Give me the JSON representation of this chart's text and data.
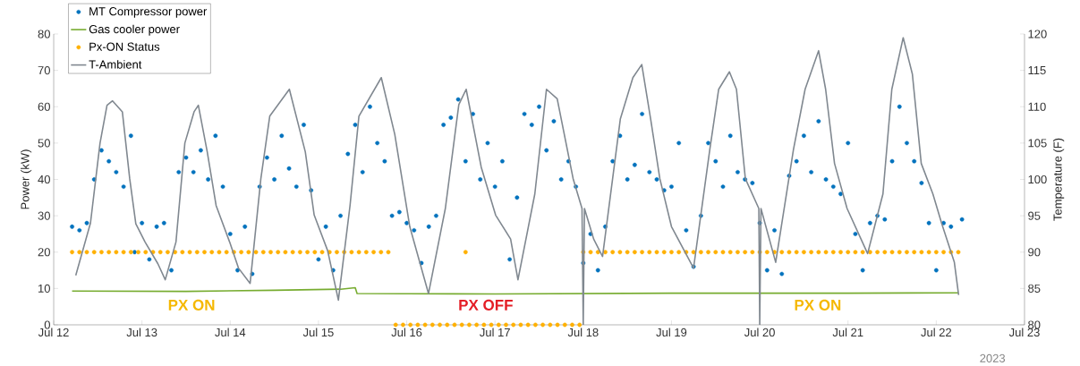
{
  "chart_data": {
    "type": "line",
    "ylabel": "Power (kW)",
    "y2label": "Temperature (F)",
    "xlim": [
      "2023-07-12",
      "2023-07-23"
    ],
    "xticks": [
      {
        "value": "2023-07-12",
        "label": "Jul 12"
      },
      {
        "value": "2023-07-13",
        "label": "Jul 13"
      },
      {
        "value": "2023-07-14",
        "label": "Jul 14"
      },
      {
        "value": "2023-07-15",
        "label": "Jul 15"
      },
      {
        "value": "2023-07-16",
        "label": "Jul 16"
      },
      {
        "value": "2023-07-17",
        "label": "Jul 17"
      },
      {
        "value": "2023-07-18",
        "label": "Jul 18"
      },
      {
        "value": "2023-07-19",
        "label": "Jul 19"
      },
      {
        "value": "2023-07-20",
        "label": "Jul 20"
      },
      {
        "value": "2023-07-21",
        "label": "Jul 21"
      },
      {
        "value": "2023-07-22",
        "label": "Jul 22"
      },
      {
        "value": "2023-07-23",
        "label": "Jul 23"
      }
    ],
    "ylim": [
      0,
      80
    ],
    "yticks": [
      0,
      10,
      20,
      30,
      40,
      50,
      60,
      70,
      80
    ],
    "y2lim": [
      80,
      120
    ],
    "y2ticks": [
      80,
      85,
      90,
      95,
      100,
      105,
      110,
      115,
      120
    ],
    "legend": "top left",
    "annotations": [
      "PX ON",
      "PX OFF",
      "PX ON",
      "2023"
    ],
    "series": [
      {
        "name": "MT Compressor power",
        "type": "scatter",
        "marker": "circle",
        "color": "#0072bd",
        "x": [
          "2023-07-12T05:00",
          "2023-07-12T07:00",
          "2023-07-12T09:00",
          "2023-07-12T11:00",
          "2023-07-12T13:00",
          "2023-07-12T15:00",
          "2023-07-12T17:00",
          "2023-07-12T19:00",
          "2023-07-12T21:00",
          "2023-07-12T22:00",
          "2023-07-13T00:00",
          "2023-07-13T02:00",
          "2023-07-13T04:00",
          "2023-07-13T06:00",
          "2023-07-13T08:00",
          "2023-07-13T10:00",
          "2023-07-13T12:00",
          "2023-07-13T14:00",
          "2023-07-13T16:00",
          "2023-07-13T18:00",
          "2023-07-13T20:00",
          "2023-07-13T22:00",
          "2023-07-14T00:00",
          "2023-07-14T02:00",
          "2023-07-14T04:00",
          "2023-07-14T06:00",
          "2023-07-14T08:00",
          "2023-07-14T10:00",
          "2023-07-14T12:00",
          "2023-07-14T14:00",
          "2023-07-14T16:00",
          "2023-07-14T18:00",
          "2023-07-14T20:00",
          "2023-07-14T22:00",
          "2023-07-15T00:00",
          "2023-07-15T02:00",
          "2023-07-15T04:00",
          "2023-07-15T06:00",
          "2023-07-15T08:00",
          "2023-07-15T10:00",
          "2023-07-15T12:00",
          "2023-07-15T14:00",
          "2023-07-15T16:00",
          "2023-07-15T18:00",
          "2023-07-15T20:00",
          "2023-07-15T22:00",
          "2023-07-16T00:00",
          "2023-07-16T02:00",
          "2023-07-16T04:00",
          "2023-07-16T06:00",
          "2023-07-16T08:00",
          "2023-07-16T10:00",
          "2023-07-16T12:00",
          "2023-07-16T14:00",
          "2023-07-16T16:00",
          "2023-07-16T18:00",
          "2023-07-16T20:00",
          "2023-07-16T22:00",
          "2023-07-17T00:00",
          "2023-07-17T02:00",
          "2023-07-17T04:00",
          "2023-07-17T06:00",
          "2023-07-17T08:00",
          "2023-07-17T10:00",
          "2023-07-17T12:00",
          "2023-07-17T14:00",
          "2023-07-17T16:00",
          "2023-07-17T18:00",
          "2023-07-17T20:00",
          "2023-07-17T22:00",
          "2023-07-18T00:00",
          "2023-07-18T02:00",
          "2023-07-18T04:00",
          "2023-07-18T06:00",
          "2023-07-18T08:00",
          "2023-07-18T10:00",
          "2023-07-18T12:00",
          "2023-07-18T14:00",
          "2023-07-18T16:00",
          "2023-07-18T18:00",
          "2023-07-18T20:00",
          "2023-07-18T22:00",
          "2023-07-19T00:00",
          "2023-07-19T02:00",
          "2023-07-19T04:00",
          "2023-07-19T06:00",
          "2023-07-19T08:00",
          "2023-07-19T10:00",
          "2023-07-19T12:00",
          "2023-07-19T14:00",
          "2023-07-19T16:00",
          "2023-07-19T18:00",
          "2023-07-19T20:00",
          "2023-07-19T22:00",
          "2023-07-20T00:00",
          "2023-07-20T02:00",
          "2023-07-20T04:00",
          "2023-07-20T06:00",
          "2023-07-20T08:00",
          "2023-07-20T10:00",
          "2023-07-20T12:00",
          "2023-07-20T14:00",
          "2023-07-20T16:00",
          "2023-07-20T18:00",
          "2023-07-20T20:00",
          "2023-07-20T22:00",
          "2023-07-21T00:00",
          "2023-07-21T02:00",
          "2023-07-21T04:00",
          "2023-07-21T06:00",
          "2023-07-21T08:00",
          "2023-07-21T10:00",
          "2023-07-21T12:00",
          "2023-07-21T14:00",
          "2023-07-21T16:00",
          "2023-07-21T18:00",
          "2023-07-21T20:00",
          "2023-07-21T22:00",
          "2023-07-22T00:00",
          "2023-07-22T02:00",
          "2023-07-22T04:00",
          "2023-07-22T06:00",
          "2023-07-22T07:00"
        ],
        "values": [
          27,
          26,
          28,
          40,
          48,
          45,
          42,
          38,
          52,
          20,
          28,
          18,
          27,
          28,
          15,
          42,
          46,
          42,
          48,
          40,
          52,
          38,
          25,
          15,
          27,
          14,
          38,
          46,
          40,
          52,
          43,
          38,
          55,
          37,
          18,
          27,
          15,
          30,
          47,
          55,
          42,
          60,
          50,
          45,
          30,
          31,
          28,
          26,
          17,
          27,
          30,
          55,
          57,
          62,
          45,
          58,
          40,
          50,
          38,
          45,
          18,
          35,
          58,
          55,
          60,
          48,
          56,
          40,
          45,
          38,
          17,
          25,
          15,
          27,
          45,
          52,
          40,
          44,
          58,
          42,
          40,
          37,
          38,
          50,
          26,
          16,
          30,
          50,
          45,
          38,
          52,
          42,
          40,
          39,
          28,
          15,
          26,
          14,
          41,
          45,
          52,
          42,
          56,
          40,
          38,
          36,
          50,
          25,
          15,
          28,
          30,
          29,
          45,
          60,
          50,
          45,
          39,
          28,
          15,
          28,
          27,
          null,
          29
        ]
      },
      {
        "name": "Gas cooler power",
        "color": "#77ac30",
        "x": [
          "2023-07-12T05:00",
          "2023-07-13T12:00",
          "2023-07-14T12:00",
          "2023-07-15T06:00",
          "2023-07-15T10:00",
          "2023-07-15T10:30",
          "2023-07-17T00:00",
          "2023-07-19T00:00",
          "2023-07-21T00:00",
          "2023-07-22T06:00"
        ],
        "values": [
          9.3,
          9.2,
          9.5,
          9.8,
          10.2,
          8.6,
          8.5,
          8.7,
          8.7,
          8.8
        ]
      },
      {
        "name": "Px-ON Status",
        "type": "scatter",
        "marker": "circle",
        "color": "#ffb000",
        "x": [
          "2023-07-12T05:00",
          "2023-07-12T07:00",
          "2023-07-12T09:00",
          "2023-07-12T11:00",
          "2023-07-12T13:00",
          "2023-07-12T15:00",
          "2023-07-12T17:00",
          "2023-07-12T19:00",
          "2023-07-12T21:00",
          "2023-07-12T23:00",
          "2023-07-13T01:00",
          "2023-07-13T03:00",
          "2023-07-13T05:00",
          "2023-07-13T07:00",
          "2023-07-13T09:00",
          "2023-07-13T11:00",
          "2023-07-13T13:00",
          "2023-07-13T15:00",
          "2023-07-13T17:00",
          "2023-07-13T19:00",
          "2023-07-13T21:00",
          "2023-07-13T23:00",
          "2023-07-14T01:00",
          "2023-07-14T03:00",
          "2023-07-14T05:00",
          "2023-07-14T07:00",
          "2023-07-14T09:00",
          "2023-07-14T11:00",
          "2023-07-14T13:00",
          "2023-07-14T15:00",
          "2023-07-14T17:00",
          "2023-07-14T19:00",
          "2023-07-14T21:00",
          "2023-07-14T23:00",
          "2023-07-15T01:00",
          "2023-07-15T03:00",
          "2023-07-15T05:00",
          "2023-07-15T07:00",
          "2023-07-15T09:00",
          "2023-07-15T11:00",
          "2023-07-15T13:00",
          "2023-07-15T15:00",
          "2023-07-15T17:00",
          "2023-07-15T19:00",
          "2023-07-15T21:00",
          "2023-07-15T23:00",
          "2023-07-16T01:00",
          "2023-07-16T03:00",
          "2023-07-16T05:00",
          "2023-07-16T07:00",
          "2023-07-16T09:00",
          "2023-07-16T11:00",
          "2023-07-16T13:00",
          "2023-07-16T15:00",
          "2023-07-16T16:00",
          "2023-07-16T17:00",
          "2023-07-16T19:00",
          "2023-07-16T21:00",
          "2023-07-16T23:00",
          "2023-07-17T01:00",
          "2023-07-17T03:00",
          "2023-07-17T05:00",
          "2023-07-17T07:00",
          "2023-07-17T09:00",
          "2023-07-17T11:00",
          "2023-07-17T13:00",
          "2023-07-17T15:00",
          "2023-07-17T17:00",
          "2023-07-17T19:00",
          "2023-07-17T21:00",
          "2023-07-17T23:00",
          "2023-07-18T00:00",
          "2023-07-18T02:00",
          "2023-07-18T04:00",
          "2023-07-18T06:00",
          "2023-07-18T08:00",
          "2023-07-18T10:00",
          "2023-07-18T12:00",
          "2023-07-18T14:00",
          "2023-07-18T16:00",
          "2023-07-18T18:00",
          "2023-07-18T20:00",
          "2023-07-18T22:00",
          "2023-07-19T00:00",
          "2023-07-19T02:00",
          "2023-07-19T04:00",
          "2023-07-19T06:00",
          "2023-07-19T08:00",
          "2023-07-19T10:00",
          "2023-07-19T12:00",
          "2023-07-19T14:00",
          "2023-07-19T16:00",
          "2023-07-19T18:00",
          "2023-07-19T20:00",
          "2023-07-19T22:00",
          "2023-07-20T00:00",
          "2023-07-20T02:00",
          "2023-07-20T04:00",
          "2023-07-20T06:00",
          "2023-07-20T08:00",
          "2023-07-20T10:00",
          "2023-07-20T12:00",
          "2023-07-20T14:00",
          "2023-07-20T16:00",
          "2023-07-20T18:00",
          "2023-07-20T20:00",
          "2023-07-20T22:00",
          "2023-07-21T00:00",
          "2023-07-21T02:00",
          "2023-07-21T04:00",
          "2023-07-21T06:00",
          "2023-07-21T08:00",
          "2023-07-21T10:00",
          "2023-07-21T12:00",
          "2023-07-21T14:00",
          "2023-07-21T16:00",
          "2023-07-21T18:00",
          "2023-07-21T20:00",
          "2023-07-21T22:00",
          "2023-07-22T00:00",
          "2023-07-22T02:00",
          "2023-07-22T04:00",
          "2023-07-22T06:00"
        ],
        "values": [
          20,
          20,
          20,
          20,
          20,
          20,
          20,
          20,
          20,
          20,
          20,
          20,
          20,
          20,
          20,
          20,
          20,
          20,
          20,
          20,
          20,
          20,
          20,
          20,
          20,
          20,
          20,
          20,
          20,
          20,
          20,
          20,
          20,
          20,
          20,
          20,
          20,
          20,
          20,
          20,
          20,
          20,
          20,
          20,
          0,
          0,
          0,
          0,
          0,
          0,
          0,
          0,
          0,
          0,
          20,
          0,
          0,
          0,
          0,
          0,
          0,
          0,
          0,
          0,
          0,
          0,
          0,
          0,
          0,
          0,
          0,
          20,
          20,
          20,
          20,
          20,
          20,
          20,
          20,
          20,
          20,
          20,
          20,
          20,
          20,
          20,
          20,
          20,
          20,
          20,
          20,
          20,
          20,
          20,
          20,
          20,
          20,
          20,
          20,
          20,
          20,
          20,
          20,
          20,
          20,
          20,
          20,
          20,
          20,
          20,
          20,
          20,
          20,
          20,
          20,
          20,
          20,
          20,
          20,
          20,
          20,
          20,
          20
        ]
      },
      {
        "name": "T-Ambient",
        "axis": "y2",
        "color": "#808890",
        "x": [
          "2023-07-12T06:00",
          "2023-07-12T10:00",
          "2023-07-12T12:36",
          "2023-07-12T14:30",
          "2023-07-12T16:00",
          "2023-07-12T18:40",
          "2023-07-12T20:40",
          "2023-07-12T22:20",
          "2023-07-13T00:50",
          "2023-07-13T04:20",
          "2023-07-13T06:20",
          "2023-07-13T09:15",
          "2023-07-13T11:40",
          "2023-07-13T14:10",
          "2023-07-13T15:20",
          "2023-07-13T17:45",
          "2023-07-13T20:10",
          "2023-07-13T23:50",
          "2023-07-14T02:15",
          "2023-07-14T05:25",
          "2023-07-14T08:20",
          "2023-07-14T10:45",
          "2023-07-14T16:05",
          "2023-07-14T20:25",
          "2023-07-14T22:50",
          "2023-07-15T02:30",
          "2023-07-15T05:25",
          "2023-07-15T08:35",
          "2023-07-15T11:00",
          "2023-07-15T17:05",
          "2023-07-15T20:45",
          "2023-07-16T00:50",
          "2023-07-16T05:55",
          "2023-07-16T10:30",
          "2023-07-16T14:10",
          "2023-07-16T16:10",
          "2023-07-16T20:15",
          "2023-07-17T00:10",
          "2023-07-17T04:15",
          "2023-07-17T06:15",
          "2023-07-17T10:50",
          "2023-07-17T14:00",
          "2023-07-17T16:55",
          "2023-07-17T21:15",
          "2023-07-17T23:40",
          "2023-07-18T00:00",
          "2023-07-18T00:20",
          "2023-07-18T02:50",
          "2023-07-18T05:15",
          "2023-07-18T10:05",
          "2023-07-18T13:30",
          "2023-07-18T15:55",
          "2023-07-18T18:20",
          "2023-07-18T20:50",
          "2023-07-19T00:00",
          "2023-07-19T06:00",
          "2023-07-19T10:25",
          "2023-07-19T12:50",
          "2023-07-19T15:45",
          "2023-07-19T17:40",
          "2023-07-19T20:05",
          "2023-07-19T23:45",
          "2023-07-20T00:00",
          "2023-07-20T00:20",
          "2023-07-20T04:20",
          "2023-07-20T09:10",
          "2023-07-20T12:20",
          "2023-07-20T16:00",
          "2023-07-20T17:55",
          "2023-07-20T20:20",
          "2023-07-20T23:45",
          "2023-07-21T05:20",
          "2023-07-21T09:30",
          "2023-07-21T11:55",
          "2023-07-21T15:00",
          "2023-07-21T17:30",
          "2023-07-21T19:55",
          "2023-07-21T23:05",
          "2023-07-22T01:30",
          "2023-07-22T04:55",
          "2023-07-22T06:05"
        ],
        "values": [
          86.8,
          94,
          105,
          110.2,
          110.8,
          109.3,
          100.1,
          93.9,
          91.4,
          88.4,
          86.2,
          91.4,
          105,
          109.3,
          110.2,
          103.8,
          96.4,
          91.4,
          87.8,
          85.7,
          100.1,
          108.7,
          112.4,
          103.8,
          95.1,
          90.2,
          83.4,
          96.4,
          108.7,
          114,
          106.2,
          93.5,
          84.3,
          96,
          110.3,
          112.4,
          101.7,
          95.1,
          91.8,
          86.2,
          98,
          112.4,
          111.1,
          100.1,
          96,
          80,
          96,
          91.8,
          89.4,
          108.3,
          114,
          115.8,
          108.3,
          100.1,
          93.5,
          87.8,
          104.1,
          112.4,
          114.8,
          112.4,
          100.1,
          96,
          80,
          96,
          88.6,
          104.1,
          112.4,
          117.7,
          112.4,
          102.2,
          96,
          89.8,
          98,
          112.4,
          119.5,
          114.5,
          102.2,
          98,
          93.9,
          88.6,
          84.1
        ]
      }
    ]
  }
}
